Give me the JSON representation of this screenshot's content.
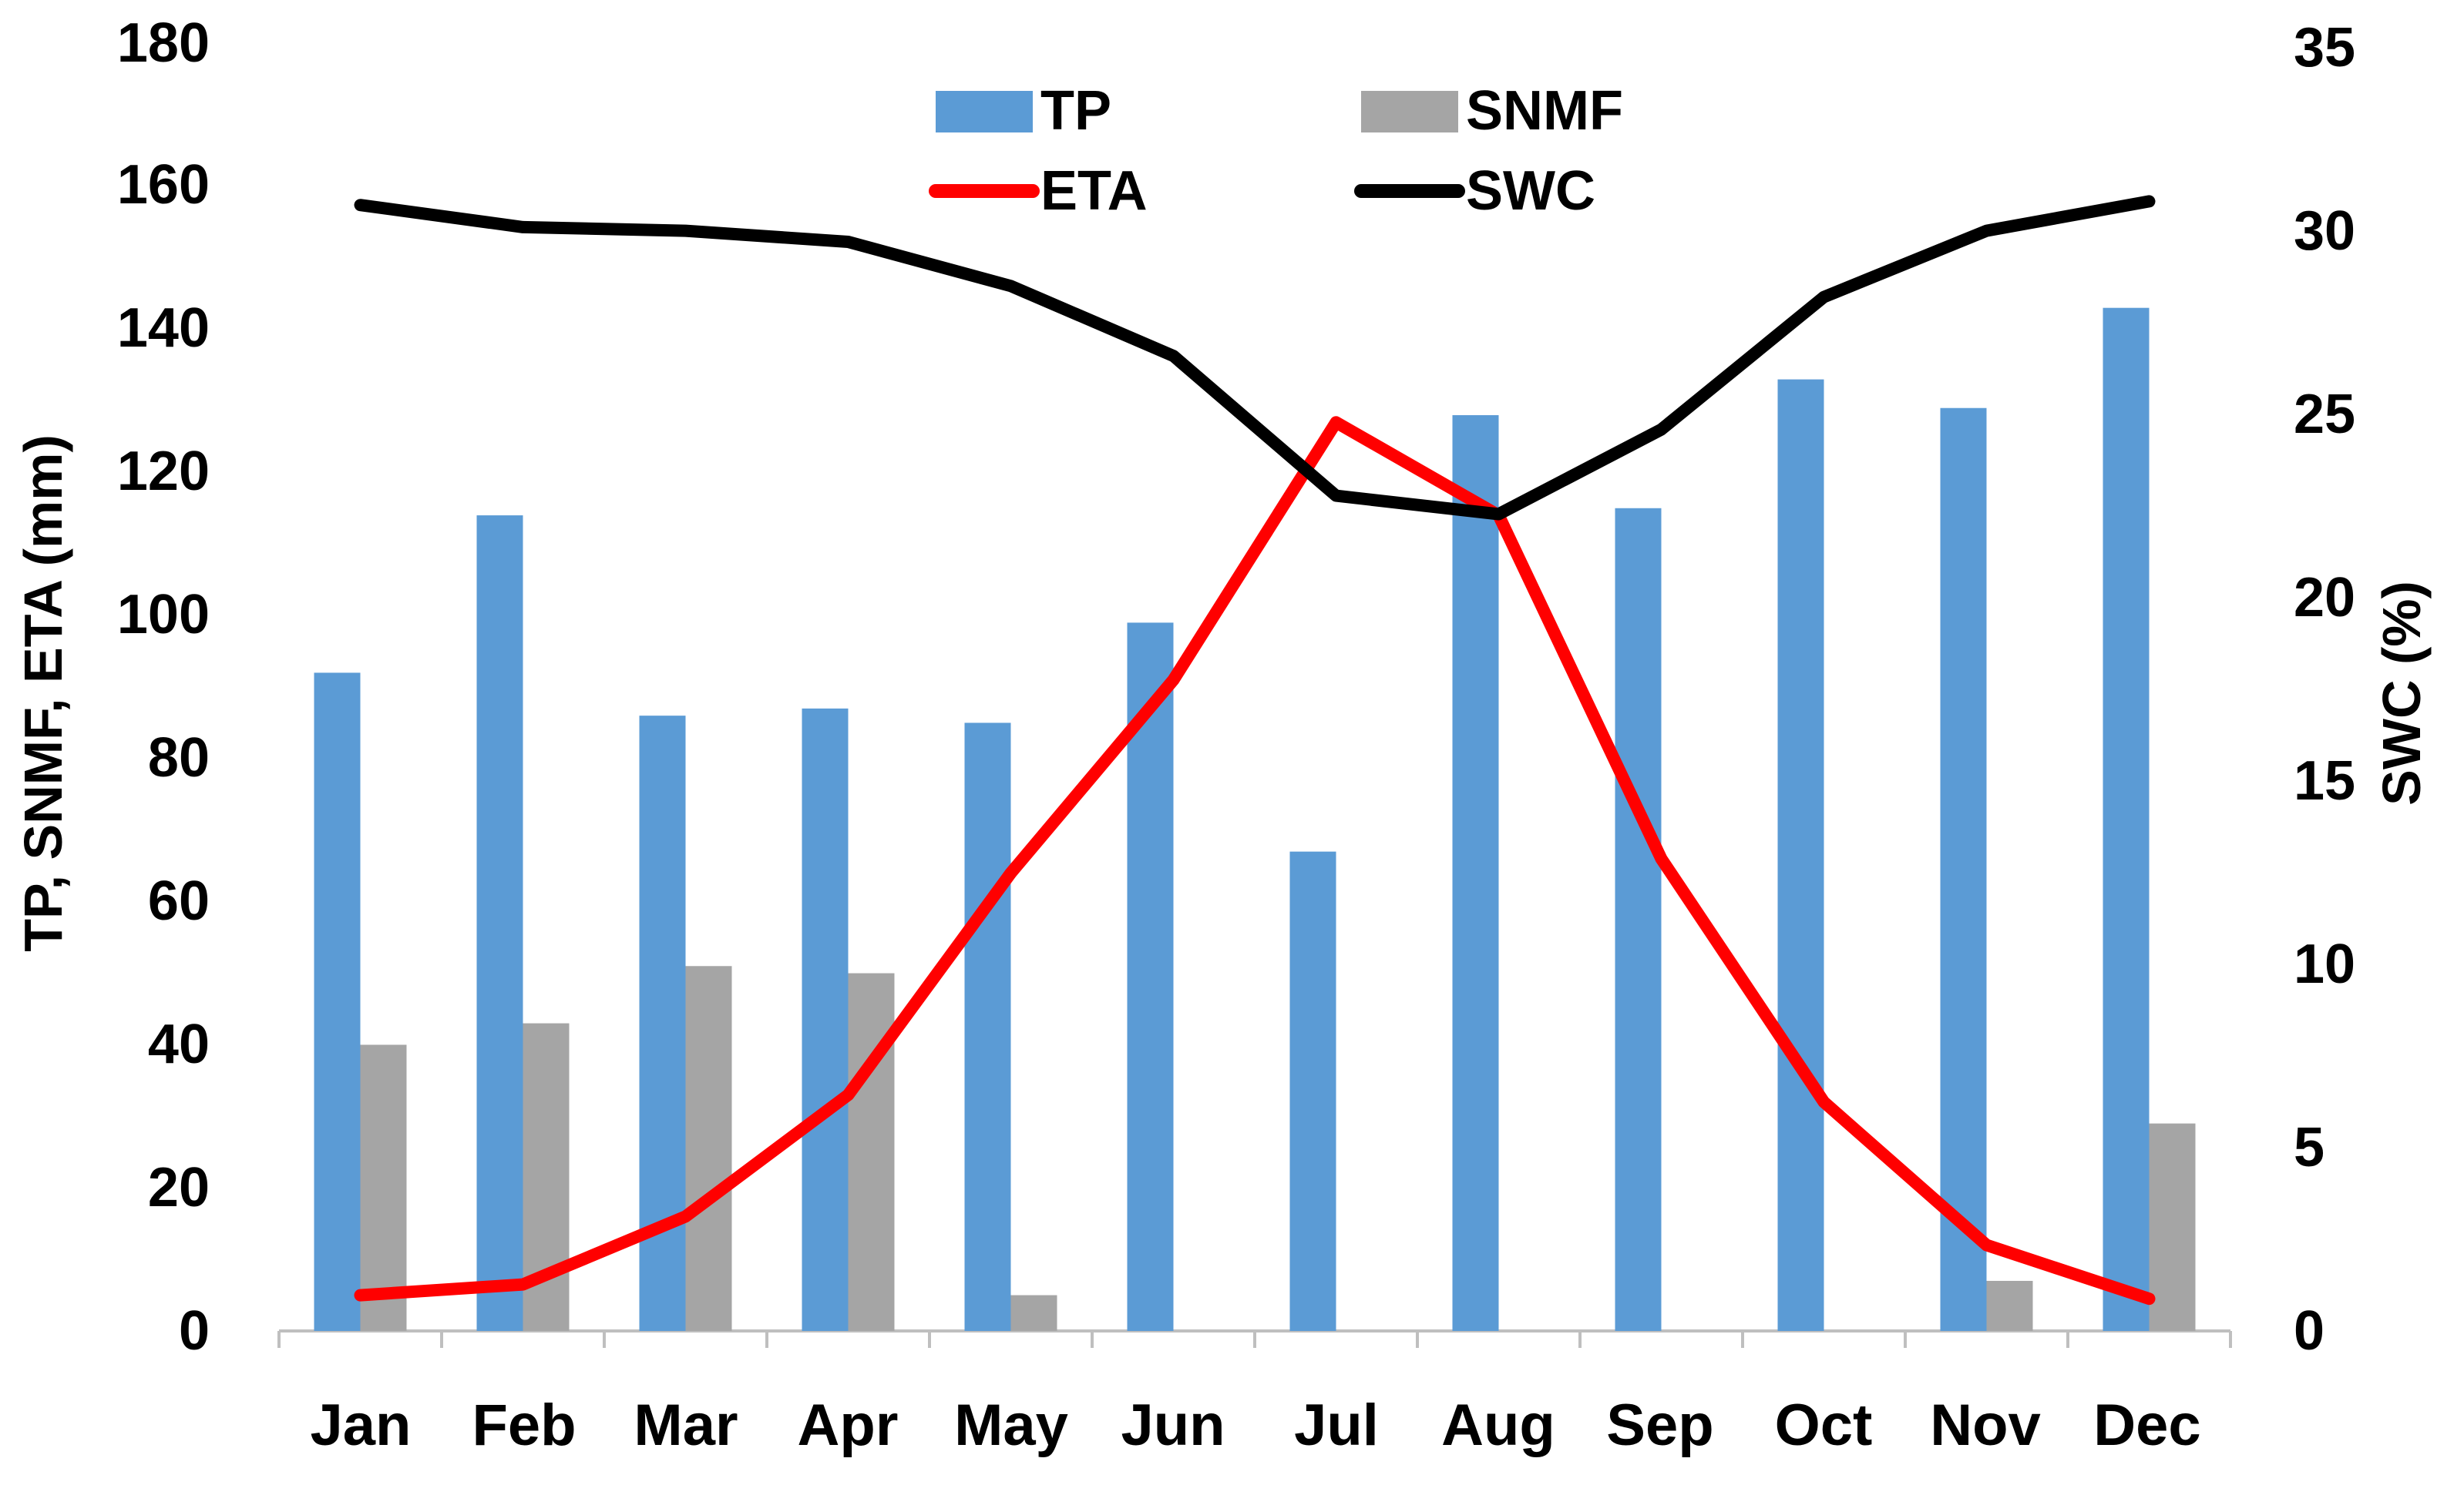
{
  "chart_data": {
    "type": "bar+line",
    "categories": [
      "Jan",
      "Feb",
      "Mar",
      "Apr",
      "May",
      "Jun",
      "Jul",
      "Aug",
      "Sep",
      "Oct",
      "Nov",
      "Dec"
    ],
    "bar_series": [
      {
        "name": "TP",
        "color": "#5b9bd5",
        "axis": "left",
        "values": [
          92,
          114,
          86,
          87,
          85,
          99,
          67,
          128,
          115,
          133,
          129,
          143
        ]
      },
      {
        "name": "SNMF",
        "color": "#a5a5a5",
        "axis": "left",
        "values": [
          40,
          43,
          51,
          50,
          5,
          0,
          0,
          0,
          0,
          0,
          7,
          29
        ]
      }
    ],
    "line_series": [
      {
        "name": "ETA",
        "color": "#ff0000",
        "axis": "left",
        "values": [
          5,
          6.5,
          16,
          33,
          64,
          91,
          127,
          114,
          66,
          32,
          12,
          4.5
        ]
      },
      {
        "name": "SWC",
        "color": "#000000",
        "axis": "right",
        "values": [
          30.6,
          30.0,
          29.9,
          29.6,
          28.4,
          26.5,
          22.7,
          22.2,
          24.5,
          28.1,
          29.9,
          30.7
        ]
      }
    ],
    "y_left": {
      "label": "TP, SNMF, ETA (mm)",
      "ylim": [
        0,
        180
      ],
      "ticks": [
        "0",
        "20",
        "40",
        "60",
        "80",
        "100",
        "120",
        "140",
        "160",
        "180"
      ]
    },
    "y_right": {
      "label": "SWC (%)",
      "ylim": [
        0,
        35
      ],
      "ticks": [
        "0",
        "5",
        "10",
        "15",
        "20",
        "25",
        "30",
        "35"
      ]
    },
    "legend": {
      "placement": "top-center",
      "entries": [
        "TP",
        "SNMF",
        "ETA",
        "SWC"
      ]
    },
    "grid": false
  }
}
